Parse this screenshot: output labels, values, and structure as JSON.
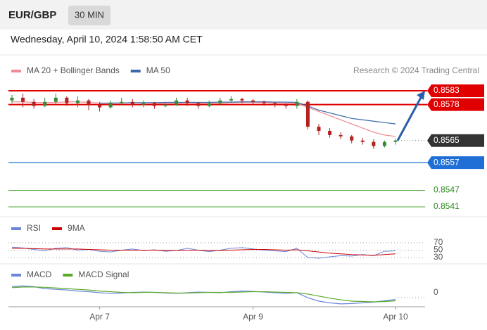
{
  "header": {
    "symbol": "EUR/GBP",
    "interval": "30 MIN",
    "datetime": "Wednesday, April 10, 2024 1:58:50 AM CET"
  },
  "chart_data": {
    "type": "candlestick",
    "legend": [
      {
        "name": "MA 20 + Bollinger Bands",
        "color": "#f08a94"
      },
      {
        "name": "MA 50",
        "color": "#3a6aa8"
      }
    ],
    "credit": "Research © 2024 Trading Central",
    "categories": [
      null,
      null,
      null,
      null,
      null,
      null,
      null,
      null,
      "Apr 7",
      null,
      null,
      null,
      null,
      null,
      null,
      null,
      null,
      null,
      null,
      null,
      null,
      null,
      "Apr 9",
      null,
      null,
      null,
      null,
      null,
      null,
      null,
      null,
      null,
      null,
      null,
      null,
      "Apr 10"
    ],
    "ylim": [
      0.8538,
      0.8587
    ],
    "candles": {
      "open": [
        0.85795,
        0.85805,
        0.8579,
        0.85775,
        0.8579,
        0.85805,
        0.85785,
        0.85795,
        0.8578,
        0.8577,
        0.85785,
        0.8579,
        0.8578,
        0.85785,
        0.85775,
        0.8578,
        0.85795,
        0.85785,
        0.85775,
        0.85785,
        0.85795,
        0.858,
        0.85795,
        0.8579,
        0.85785,
        0.8578,
        0.85775,
        0.8579,
        0.857,
        0.85685,
        0.8567,
        0.85665,
        0.8565,
        0.85645,
        0.8563,
        0.85645
      ],
      "high": [
        0.85815,
        0.8582,
        0.858,
        0.85805,
        0.8582,
        0.8581,
        0.8581,
        0.858,
        0.8579,
        0.85795,
        0.85805,
        0.858,
        0.85795,
        0.8579,
        0.8579,
        0.85805,
        0.85805,
        0.8579,
        0.85795,
        0.85805,
        0.8581,
        0.85805,
        0.858,
        0.85795,
        0.8579,
        0.85785,
        0.858,
        0.85795,
        0.8571,
        0.85695,
        0.8568,
        0.8567,
        0.8566,
        0.85655,
        0.8565,
        0.85655
      ],
      "low": [
        0.85785,
        0.8577,
        0.85765,
        0.8577,
        0.8578,
        0.85775,
        0.8577,
        0.8576,
        0.85755,
        0.85765,
        0.8578,
        0.8577,
        0.8577,
        0.85765,
        0.8577,
        0.85775,
        0.85775,
        0.85765,
        0.8577,
        0.8578,
        0.8579,
        0.85785,
        0.8578,
        0.85775,
        0.8577,
        0.85765,
        0.85765,
        0.8569,
        0.8567,
        0.8566,
        0.85655,
        0.8564,
        0.85635,
        0.8562,
        0.85625,
        0.85635
      ],
      "close": [
        0.85805,
        0.8579,
        0.85775,
        0.8579,
        0.85805,
        0.85785,
        0.85795,
        0.8578,
        0.8577,
        0.85785,
        0.8579,
        0.8578,
        0.85785,
        0.85775,
        0.8578,
        0.85795,
        0.85785,
        0.85775,
        0.85785,
        0.85795,
        0.858,
        0.85795,
        0.8579,
        0.85785,
        0.8578,
        0.85775,
        0.8579,
        0.857,
        0.85685,
        0.8567,
        0.85665,
        0.8565,
        0.85645,
        0.8563,
        0.85645,
        0.8565
      ],
      "up_color": "#3a8a3a",
      "down_color": "#b22222"
    },
    "series": [
      {
        "name": "MA 20 + Bollinger Bands",
        "color": "#f08a94",
        "values": [
          0.8579,
          0.8579,
          0.85788,
          0.85787,
          0.85788,
          0.8579,
          0.8579,
          0.85788,
          0.85786,
          0.85785,
          0.85786,
          0.85787,
          0.85786,
          0.85785,
          0.85784,
          0.85785,
          0.85786,
          0.85785,
          0.85784,
          0.85785,
          0.85787,
          0.85788,
          0.85788,
          0.85787,
          0.85786,
          0.85785,
          0.85785,
          0.8577,
          0.85755,
          0.8574,
          0.85725,
          0.8571,
          0.85695,
          0.8568,
          0.8567,
          0.85665
        ]
      },
      {
        "name": "MA 50",
        "color": "#3a6aa8",
        "values": [
          null,
          null,
          null,
          null,
          null,
          null,
          null,
          null,
          0.85785,
          0.85786,
          0.85786,
          0.85787,
          0.85787,
          0.85787,
          0.85788,
          0.85788,
          0.85788,
          0.85788,
          0.85788,
          0.85789,
          0.85789,
          0.8579,
          0.8579,
          0.8579,
          0.85789,
          0.85789,
          0.85788,
          0.85775,
          0.8576,
          0.8575,
          0.8574,
          0.8573,
          0.85725,
          0.8572,
          0.85715,
          0.8571
        ]
      }
    ],
    "levels": [
      {
        "value": 0.8583,
        "color": "#e00000",
        "kind": "resistance"
      },
      {
        "value": 0.8578,
        "color": "#e00000",
        "kind": "resistance"
      },
      {
        "value": 0.8565,
        "color": "#333333",
        "kind": "current"
      },
      {
        "value": 0.8557,
        "color": "#1f6fd6",
        "kind": "pivot"
      },
      {
        "value": 0.8547,
        "color": "#4caa3a",
        "kind": "support"
      },
      {
        "value": 0.8541,
        "color": "#4caa3a",
        "kind": "support"
      }
    ],
    "rsi": {
      "ylim": [
        20,
        100
      ],
      "yticks": [
        70,
        50,
        30
      ],
      "series": [
        {
          "name": "RSI",
          "color": "#6a86d8",
          "values": [
            58,
            56,
            52,
            48,
            55,
            57,
            50,
            52,
            47,
            45,
            50,
            53,
            49,
            51,
            47,
            49,
            55,
            50,
            46,
            50,
            55,
            57,
            53,
            50,
            48,
            46,
            55,
            30,
            28,
            32,
            35,
            34,
            38,
            35,
            47,
            48
          ]
        },
        {
          "name": "9MA",
          "color": "#cc0000",
          "values": [
            55,
            55,
            54,
            53,
            53,
            53,
            53,
            52,
            51,
            50,
            50,
            50,
            50,
            50,
            49,
            49,
            50,
            50,
            49,
            49,
            50,
            51,
            52,
            52,
            51,
            50,
            51,
            48,
            45,
            42,
            40,
            38,
            37,
            36,
            38,
            40
          ]
        }
      ]
    },
    "macd": {
      "ylim": [
        -0.0005,
        0.0005
      ],
      "yticks": [
        0
      ],
      "series": [
        {
          "name": "MACD",
          "color": "#6a86d8",
          "values": [
            0.00018,
            0.0002,
            0.00018,
            0.00012,
            0.0001,
            8e-05,
            5e-05,
            3e-05,
            0,
            -2e-05,
            -1e-05,
            1e-05,
            2e-05,
            1e-05,
            -1e-05,
            -2e-05,
            0,
            2e-05,
            1e-05,
            0,
            3e-05,
            5e-05,
            4e-05,
            2e-05,
            0,
            -2e-05,
            0,
            -0.00015,
            -0.00025,
            -0.0003,
            -0.00033,
            -0.00032,
            -0.0003,
            -0.00028,
            -0.00024,
            -0.0002
          ]
        },
        {
          "name": "MACD Signal",
          "color": "#5aaa2a",
          "values": [
            0.00015,
            0.00017,
            0.00017,
            0.00016,
            0.00014,
            0.00012,
            0.0001,
            8e-05,
            5e-05,
            3e-05,
            1e-05,
            0,
            1e-05,
            1e-05,
            0,
            -1e-05,
            -1e-05,
            0,
            1e-05,
            1e-05,
            1e-05,
            2e-05,
            3e-05,
            3e-05,
            2e-05,
            1e-05,
            0,
            -4e-05,
            -0.0001,
            -0.00016,
            -0.00021,
            -0.00025,
            -0.00026,
            -0.00027,
            -0.00026,
            -0.00024
          ]
        }
      ]
    }
  }
}
